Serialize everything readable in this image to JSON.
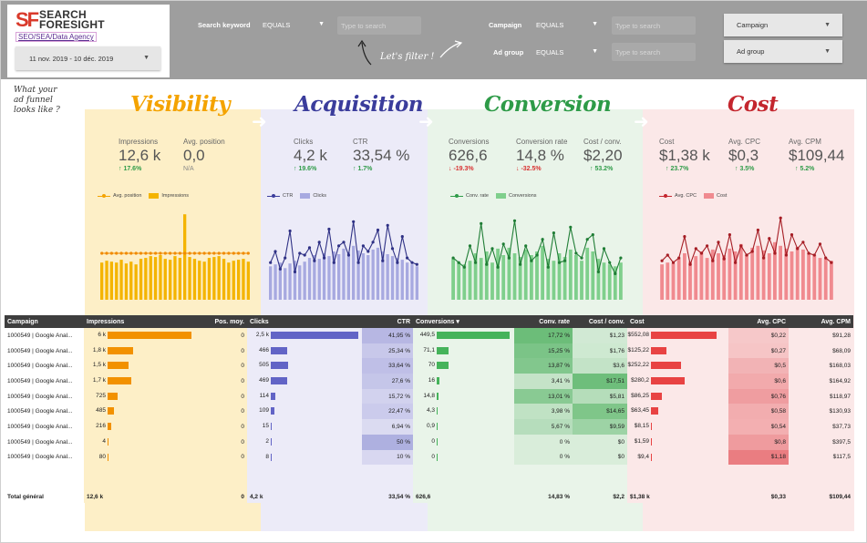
{
  "logo": {
    "mark": "SF",
    "name_line1": "SEARCH",
    "name_line2": "FORESIGHT",
    "subtitle": "SEO/SEA/Data Agency"
  },
  "date_range": "11 nov. 2019 - 10 déc. 2019",
  "filters": {
    "search_keyword": {
      "label": "Search keyword",
      "operator": "EQUALS",
      "placeholder": "Type to search"
    },
    "campaign": {
      "label": "Campaign",
      "operator": "EQUALS",
      "placeholder": "Type to search"
    },
    "ad_group": {
      "label": "Ad group",
      "operator": "EQUALS",
      "placeholder": "Type to search"
    },
    "campaign_select": "Campaign",
    "ad_group_select": "Ad group"
  },
  "annotations": {
    "filter_note": "Let's filter !",
    "funnel_question_1": "What your",
    "funnel_question_2": "ad funnel",
    "funnel_question_3": "looks like ?"
  },
  "colors": {
    "visibility": "#f4a300",
    "acquisition": "#3b3d9c",
    "conversion": "#2e9b48",
    "cost": "#c4262e"
  },
  "sections": {
    "visibility": {
      "title": "Visibility",
      "kpis": [
        {
          "label": "Impressions",
          "value": "12,6 k",
          "delta": "↑ 17.6%",
          "trend": "up"
        },
        {
          "label": "Avg. position",
          "value": "0,0",
          "delta": "N/A",
          "trend": "na"
        }
      ],
      "legend_line": "Avg. position",
      "legend_bar": "Impressions"
    },
    "acquisition": {
      "title": "Acquisition",
      "kpis": [
        {
          "label": "Clicks",
          "value": "4,2 k",
          "delta": "↑ 19.6%",
          "trend": "up"
        },
        {
          "label": "CTR",
          "value": "33,54 %",
          "delta": "↑ 1.7%",
          "trend": "up"
        }
      ],
      "legend_line": "CTR",
      "legend_bar": "Clicks"
    },
    "conversion": {
      "title": "Conversion",
      "kpis": [
        {
          "label": "Conversions",
          "value": "626,6",
          "delta": "↓ -19.3%",
          "trend": "down"
        },
        {
          "label": "Conversion rate",
          "value": "14,8 %",
          "delta": "↓ -32.5%",
          "trend": "down"
        },
        {
          "label": "Cost / conv.",
          "value": "$2,20",
          "delta": "↑ 53.2%",
          "trend": "up"
        }
      ],
      "legend_line": "Conv. rate",
      "legend_bar": "Conversions"
    },
    "cost": {
      "title": "Cost",
      "kpis": [
        {
          "label": "Cost",
          "value": "$1,38 k",
          "delta": "↑ 23.7%",
          "trend": "up"
        },
        {
          "label": "Avg. CPC",
          "value": "$0,3",
          "delta": "↑ 3.5%",
          "trend": "up"
        },
        {
          "label": "Avg. CPM",
          "value": "$109,44",
          "delta": "↑ 5.2%",
          "trend": "up"
        }
      ],
      "legend_line": "Avg. CPC",
      "legend_bar": "Cost"
    }
  },
  "chart_data": [
    {
      "type": "bar",
      "name": "visibility-trend",
      "series": [
        {
          "name": "Impressions",
          "values": [
            40,
            42,
            41,
            40,
            43,
            39,
            41,
            38,
            44,
            45,
            47,
            46,
            48,
            44,
            43,
            47,
            45,
            92,
            46,
            44,
            42,
            41,
            45,
            46,
            47,
            44,
            40,
            42,
            43,
            44,
            41
          ]
        },
        {
          "name": "Avg. position",
          "values": [
            50,
            50,
            50,
            50,
            50,
            50,
            50,
            50,
            50,
            50,
            50,
            50,
            50,
            50,
            50,
            50,
            50,
            50,
            50,
            50,
            50,
            50,
            50,
            50,
            50,
            50,
            50,
            50,
            50,
            50,
            50
          ]
        }
      ]
    },
    {
      "type": "bar",
      "name": "acquisition-trend",
      "series": [
        {
          "name": "Clicks",
          "values": [
            36,
            38,
            40,
            34,
            39,
            42,
            37,
            41,
            45,
            48,
            44,
            50,
            47,
            52,
            49,
            55,
            51,
            58,
            53,
            50,
            48,
            54,
            56,
            52,
            49,
            47,
            45,
            43,
            40,
            38,
            36
          ]
        },
        {
          "name": "CTR",
          "values": [
            40,
            52,
            33,
            45,
            74,
            30,
            50,
            48,
            56,
            42,
            62,
            45,
            76,
            40,
            58,
            62,
            48,
            84,
            40,
            58,
            52,
            62,
            75,
            42,
            80,
            55,
            40,
            68,
            45,
            40,
            38
          ]
        }
      ]
    },
    {
      "type": "bar",
      "name": "conversion-trend",
      "series": [
        {
          "name": "Conversions",
          "values": [
            44,
            40,
            38,
            42,
            50,
            45,
            52,
            40,
            55,
            48,
            56,
            50,
            46,
            54,
            48,
            52,
            58,
            44,
            42,
            50,
            46,
            54,
            48,
            42,
            56,
            52,
            44,
            40,
            38,
            36,
            40
          ]
        },
        {
          "name": "Conv. rate",
          "values": [
            45,
            40,
            35,
            58,
            40,
            82,
            38,
            55,
            35,
            60,
            45,
            85,
            38,
            58,
            42,
            48,
            65,
            35,
            72,
            40,
            42,
            78,
            50,
            45,
            65,
            70,
            30,
            55,
            40,
            28,
            45
          ]
        }
      ]
    },
    {
      "type": "bar",
      "name": "cost-trend",
      "series": [
        {
          "name": "Cost",
          "values": [
            38,
            40,
            39,
            44,
            50,
            41,
            47,
            52,
            45,
            54,
            50,
            48,
            55,
            52,
            60,
            48,
            56,
            58,
            53,
            50,
            62,
            58,
            55,
            52,
            57,
            54,
            50,
            48,
            45,
            44,
            42
          ]
        },
        {
          "name": "Avg. CPC",
          "values": [
            42,
            48,
            40,
            45,
            68,
            38,
            55,
            50,
            58,
            42,
            62,
            44,
            70,
            40,
            58,
            48,
            52,
            75,
            45,
            66,
            50,
            88,
            48,
            70,
            55,
            62,
            50,
            48,
            60,
            45,
            40
          ]
        }
      ]
    }
  ],
  "table": {
    "headers": [
      "Campaign",
      "Impressions",
      "Pos. moy.",
      "Clicks",
      "CTR",
      "Conversions ▾",
      "Conv. rate",
      "Cost / conv.",
      "Cost",
      "Avg. CPC",
      "Avg. CPM"
    ],
    "rows": [
      {
        "campaign": "1000549 | Google Anal...",
        "impr": "6 k",
        "impr_pct": 100,
        "pos": "0",
        "clicks": "2,5 k",
        "clicks_pct": 100,
        "ctr": "41,95 %",
        "conv": "449,5",
        "conv_pct": 100,
        "crate": "17,72 %",
        "cpc_conv": "$1,23",
        "cost": "$552,08",
        "cost_pct": 100,
        "avg_cpc": "$0,22",
        "avg_cpm": "$91,28"
      },
      {
        "campaign": "1000549 | Google Anal...",
        "impr": "1,8 k",
        "impr_pct": 30,
        "pos": "0",
        "clicks": "466",
        "clicks_pct": 19,
        "ctr": "25,34 %",
        "conv": "71,1",
        "conv_pct": 16,
        "crate": "15,25 %",
        "cpc_conv": "$1,76",
        "cost": "$125,22",
        "cost_pct": 23,
        "avg_cpc": "$0,27",
        "avg_cpm": "$68,09"
      },
      {
        "campaign": "1000549 | Google Anal...",
        "impr": "1,5 k",
        "impr_pct": 25,
        "pos": "0",
        "clicks": "505",
        "clicks_pct": 20,
        "ctr": "33,64 %",
        "conv": "70",
        "conv_pct": 16,
        "crate": "13,87 %",
        "cpc_conv": "$3,6",
        "cost": "$252,22",
        "cost_pct": 46,
        "avg_cpc": "$0,5",
        "avg_cpm": "$168,03"
      },
      {
        "campaign": "1000549 | Google Anal...",
        "impr": "1,7 k",
        "impr_pct": 28,
        "pos": "0",
        "clicks": "469",
        "clicks_pct": 19,
        "ctr": "27,6 %",
        "conv": "16",
        "conv_pct": 4,
        "crate": "3,41 %",
        "cpc_conv": "$17,51",
        "cost": "$280,2",
        "cost_pct": 51,
        "avg_cpc": "$0,6",
        "avg_cpm": "$164,92"
      },
      {
        "campaign": "1000549 | Google Anal...",
        "impr": "725",
        "impr_pct": 12,
        "pos": "0",
        "clicks": "114",
        "clicks_pct": 5,
        "ctr": "15,72 %",
        "conv": "14,8",
        "conv_pct": 3,
        "crate": "13,01 %",
        "cpc_conv": "$5,81",
        "cost": "$86,25",
        "cost_pct": 16,
        "avg_cpc": "$0,76",
        "avg_cpm": "$118,97"
      },
      {
        "campaign": "1000549 | Google Anal...",
        "impr": "485",
        "impr_pct": 8,
        "pos": "0",
        "clicks": "109",
        "clicks_pct": 4,
        "ctr": "22,47 %",
        "conv": "4,3",
        "conv_pct": 1,
        "crate": "3,98 %",
        "cpc_conv": "$14,65",
        "cost": "$63,45",
        "cost_pct": 11,
        "avg_cpc": "$0,58",
        "avg_cpm": "$130,93"
      },
      {
        "campaign": "1000549 | Google Anal...",
        "impr": "216",
        "impr_pct": 4,
        "pos": "0",
        "clicks": "15",
        "clicks_pct": 1,
        "ctr": "6,94 %",
        "conv": "0,9",
        "conv_pct": 0.3,
        "crate": "5,67 %",
        "cpc_conv": "$9,59",
        "cost": "$8,15",
        "cost_pct": 1.5,
        "avg_cpc": "$0,54",
        "avg_cpm": "$37,73"
      },
      {
        "campaign": "1000549 | Google Anal...",
        "impr": "4",
        "impr_pct": 0.3,
        "pos": "0",
        "clicks": "2",
        "clicks_pct": 0.3,
        "ctr": "50 %",
        "conv": "0",
        "conv_pct": 0.2,
        "crate": "0 %",
        "cpc_conv": "$0",
        "cost": "$1,59",
        "cost_pct": 0.4,
        "avg_cpc": "$0,8",
        "avg_cpm": "$397,5"
      },
      {
        "campaign": "1000549 | Google Anal...",
        "impr": "80",
        "impr_pct": 1,
        "pos": "0",
        "clicks": "8",
        "clicks_pct": 0.4,
        "ctr": "10 %",
        "conv": "0",
        "conv_pct": 0.2,
        "crate": "0 %",
        "cpc_conv": "$0",
        "cost": "$9,4",
        "cost_pct": 1.7,
        "avg_cpc": "$1,18",
        "avg_cpm": "$117,5"
      }
    ],
    "total": {
      "label": "Total général",
      "impr": "12,6 k",
      "pos": "0",
      "clicks": "4,2 k",
      "ctr": "33,54 %",
      "conv": "626,6",
      "crate": "14,83 %",
      "cpc_conv": "$2,2",
      "cost": "$1,38 k",
      "avg_cpc": "$0,33",
      "avg_cpm": "$109,44"
    }
  }
}
